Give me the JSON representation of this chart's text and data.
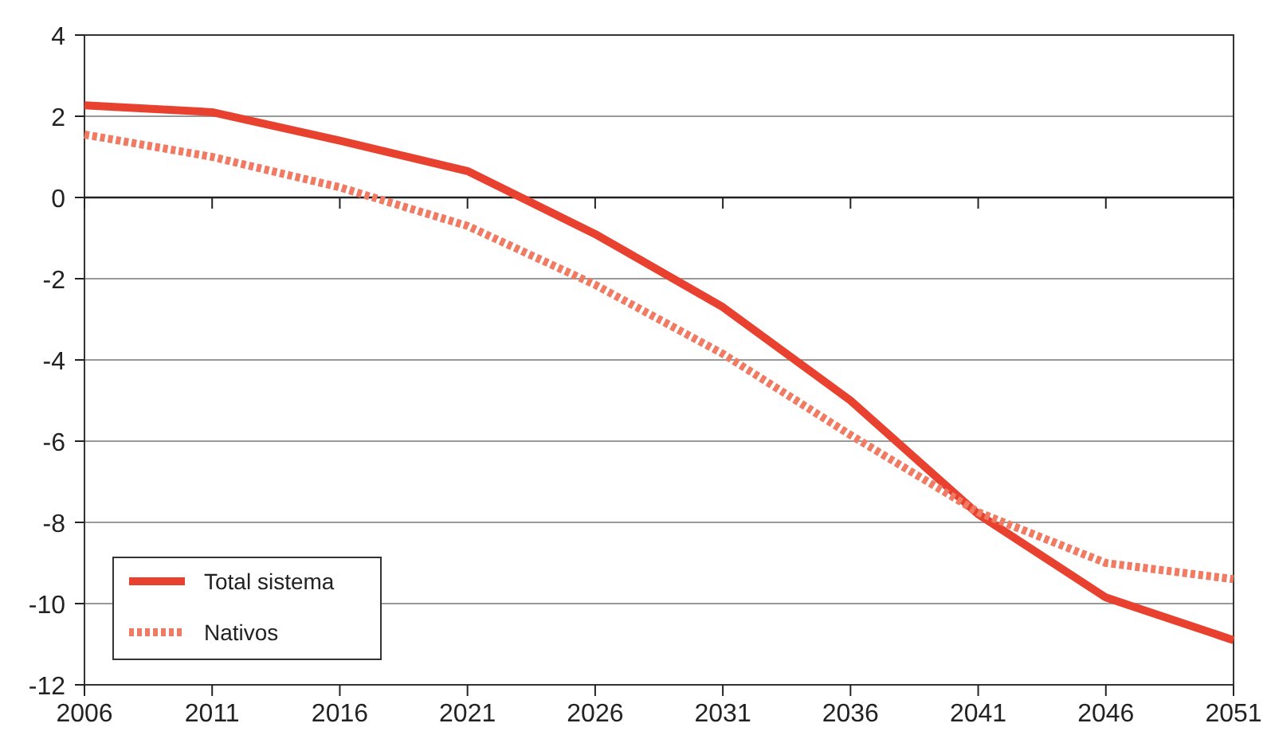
{
  "chart_data": {
    "type": "line",
    "x": [
      2006,
      2011,
      2016,
      2021,
      2026,
      2031,
      2036,
      2041,
      2046,
      2051
    ],
    "series": [
      {
        "name": "Total sistema",
        "color": "#e8412f",
        "line_style": "solid",
        "values": [
          2.27,
          2.1,
          1.4,
          0.65,
          -0.9,
          -2.7,
          -5.0,
          -7.8,
          -9.85,
          -10.9
        ]
      },
      {
        "name": "Nativos",
        "color": "#f07a62",
        "line_style": "dotted",
        "values": [
          1.55,
          1.0,
          0.25,
          -0.7,
          -2.15,
          -3.85,
          -5.85,
          -7.75,
          -9.0,
          -9.4
        ]
      }
    ],
    "xlim": [
      2006,
      2051
    ],
    "xticks": [
      2006,
      2011,
      2016,
      2021,
      2026,
      2031,
      2036,
      2041,
      2046,
      2051
    ],
    "ylim": [
      -12,
      4
    ],
    "yticks": [
      -12,
      -10,
      -8,
      -6,
      -4,
      -2,
      0,
      2,
      4
    ],
    "grid": "y",
    "legend": "bottom left",
    "marker": "none"
  }
}
